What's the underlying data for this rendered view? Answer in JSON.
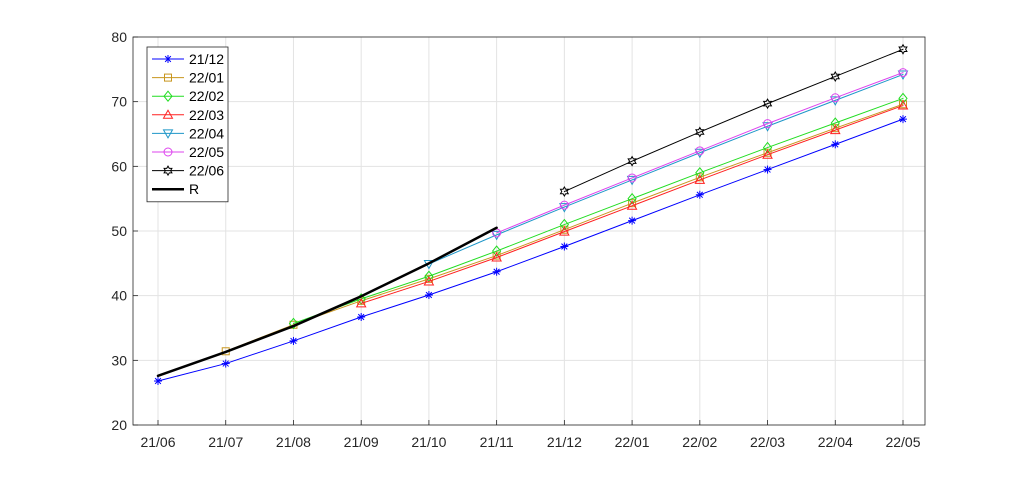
{
  "chart_data": {
    "type": "line",
    "categories": [
      "21/06",
      "21/07",
      "21/08",
      "21/09",
      "21/10",
      "21/11",
      "21/12",
      "22/01",
      "22/02",
      "22/03",
      "22/04",
      "22/05"
    ],
    "ylim": [
      20,
      80
    ],
    "yticks": [
      20,
      30,
      40,
      50,
      60,
      70,
      80
    ],
    "grid": true,
    "legend_position": "top-left",
    "series": [
      {
        "name": "21/12",
        "marker": "asterisk",
        "color": "#0000ff",
        "lineWidth": 1,
        "values": [
          26.8,
          29.5,
          33.0,
          36.7,
          40.1,
          43.7,
          47.6,
          51.6,
          55.6,
          59.5,
          63.4,
          67.3
        ]
      },
      {
        "name": "22/01",
        "marker": "square",
        "color": "#c8961e",
        "lineWidth": 1,
        "values": [
          null,
          31.4,
          35.5,
          39.2,
          42.6,
          46.2,
          50.2,
          54.3,
          58.3,
          62.1,
          65.9,
          69.6
        ]
      },
      {
        "name": "22/02",
        "marker": "diamond",
        "color": "#22dd22",
        "lineWidth": 1,
        "values": [
          null,
          null,
          35.7,
          39.5,
          43.0,
          46.9,
          51.0,
          55.0,
          59.0,
          62.9,
          66.7,
          70.5
        ]
      },
      {
        "name": "22/03",
        "marker": "triangle-up",
        "color": "#ff2020",
        "lineWidth": 1,
        "values": [
          null,
          null,
          null,
          38.8,
          42.2,
          45.9,
          49.9,
          53.9,
          57.9,
          61.8,
          65.6,
          69.4
        ]
      },
      {
        "name": "22/04",
        "marker": "triangle-down",
        "color": "#1e96c8",
        "lineWidth": 1,
        "values": [
          null,
          null,
          null,
          null,
          44.9,
          49.4,
          53.7,
          57.9,
          62.1,
          66.2,
          70.2,
          74.2
        ]
      },
      {
        "name": "22/05",
        "marker": "circle",
        "color": "#dd44ee",
        "lineWidth": 1,
        "values": [
          null,
          null,
          null,
          null,
          null,
          49.7,
          54.0,
          58.2,
          62.4,
          66.6,
          70.6,
          74.5
        ]
      },
      {
        "name": "22/06",
        "marker": "hexagram",
        "color": "#000000",
        "lineWidth": 1,
        "values": [
          null,
          null,
          null,
          null,
          null,
          null,
          56.1,
          60.8,
          65.3,
          69.7,
          73.9,
          78.1
        ]
      },
      {
        "name": "R",
        "marker": "none",
        "color": "#000000",
        "lineWidth": 2.5,
        "values": [
          27.6,
          31.3,
          35.3,
          39.9,
          45.0,
          50.5,
          null,
          null,
          null,
          null,
          null,
          null
        ]
      }
    ]
  }
}
